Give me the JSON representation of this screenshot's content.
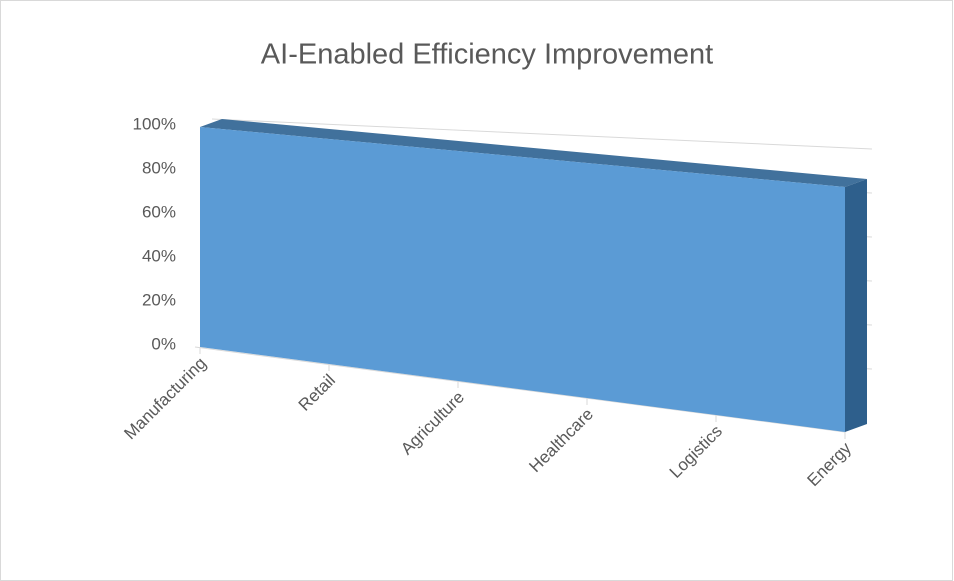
{
  "chart_data": {
    "type": "area",
    "title": "AI-Enabled Efficiency Improvement",
    "categories": [
      "Manufacturing",
      "Retail",
      "Agriculture",
      "Healthcare",
      "Logistics",
      "Energy"
    ],
    "values": [
      100,
      100,
      100,
      100,
      100,
      100
    ],
    "color": "#5b9bd5",
    "ylim": [
      0,
      100
    ],
    "yticks": [
      {
        "value": 0,
        "label": "0%"
      },
      {
        "value": 20,
        "label": "20%"
      },
      {
        "value": 40,
        "label": "40%"
      },
      {
        "value": 60,
        "label": "60%"
      },
      {
        "value": 80,
        "label": "80%"
      },
      {
        "value": 100,
        "label": "100%"
      }
    ],
    "grid": true
  }
}
